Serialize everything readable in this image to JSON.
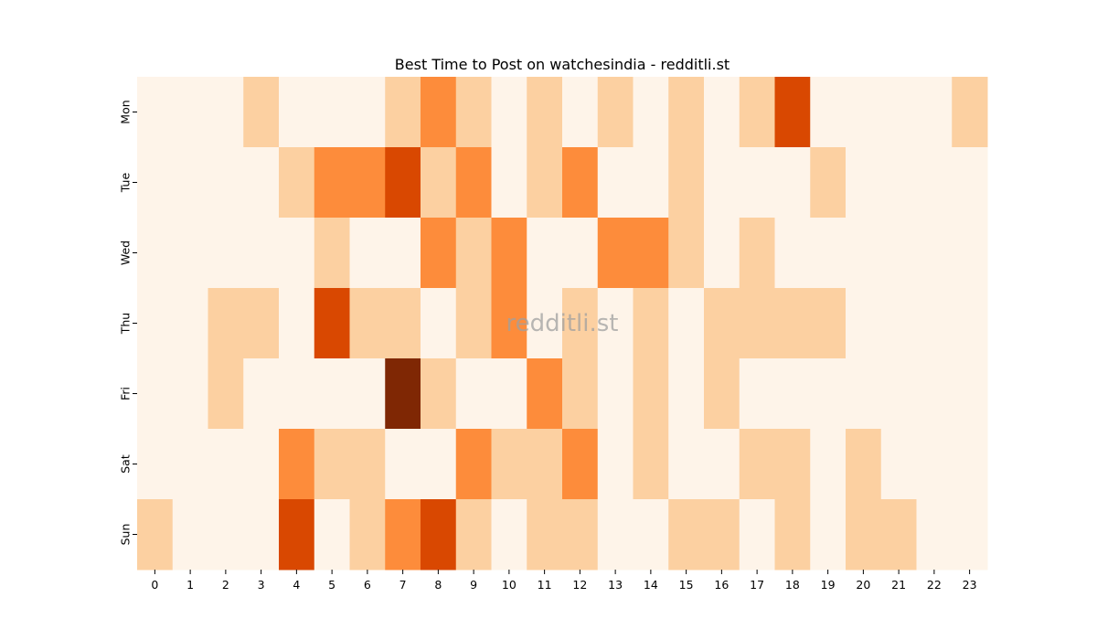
{
  "chart_data": {
    "type": "heatmap",
    "title": "Best Time to Post on watchesindia - redditli.st",
    "xlabel": "",
    "ylabel": "",
    "x": [
      "0",
      "1",
      "2",
      "3",
      "4",
      "5",
      "6",
      "7",
      "8",
      "9",
      "10",
      "11",
      "12",
      "13",
      "14",
      "15",
      "16",
      "17",
      "18",
      "19",
      "20",
      "21",
      "22",
      "23"
    ],
    "y": [
      "Mon",
      "Tue",
      "Wed",
      "Thu",
      "Fri",
      "Sat",
      "Sun"
    ],
    "values": [
      [
        0,
        0,
        0,
        1,
        0,
        0,
        0,
        1,
        2,
        1,
        0,
        1,
        0,
        1,
        0,
        1,
        0,
        1,
        3,
        0,
        0,
        0,
        0,
        1
      ],
      [
        0,
        0,
        0,
        0,
        1,
        2,
        2,
        3,
        1,
        2,
        0,
        1,
        2,
        0,
        0,
        1,
        0,
        0,
        0,
        1,
        0,
        0,
        0,
        0
      ],
      [
        0,
        0,
        0,
        0,
        0,
        1,
        0,
        0,
        2,
        1,
        2,
        0,
        0,
        2,
        2,
        1,
        0,
        1,
        0,
        0,
        0,
        0,
        0,
        0
      ],
      [
        0,
        0,
        1,
        1,
        0,
        3,
        1,
        1,
        0,
        1,
        2,
        0,
        1,
        0,
        1,
        0,
        1,
        1,
        1,
        1,
        0,
        0,
        0,
        0
      ],
      [
        0,
        0,
        1,
        0,
        0,
        0,
        0,
        4,
        1,
        0,
        0,
        2,
        1,
        0,
        1,
        0,
        1,
        0,
        0,
        0,
        0,
        0,
        0,
        0
      ],
      [
        0,
        0,
        0,
        0,
        2,
        1,
        1,
        0,
        0,
        2,
        1,
        1,
        2,
        0,
        1,
        0,
        0,
        1,
        1,
        0,
        1,
        0,
        0,
        0
      ],
      [
        1,
        0,
        0,
        0,
        3,
        0,
        1,
        2,
        3,
        1,
        0,
        1,
        1,
        0,
        0,
        1,
        1,
        0,
        1,
        0,
        1,
        1,
        0,
        0
      ]
    ],
    "colormap": [
      "#fef4e9",
      "#fcd0a1",
      "#fd8c3b",
      "#d94801",
      "#7f2704"
    ],
    "colorbar": false,
    "watermark": "redditli.st"
  }
}
